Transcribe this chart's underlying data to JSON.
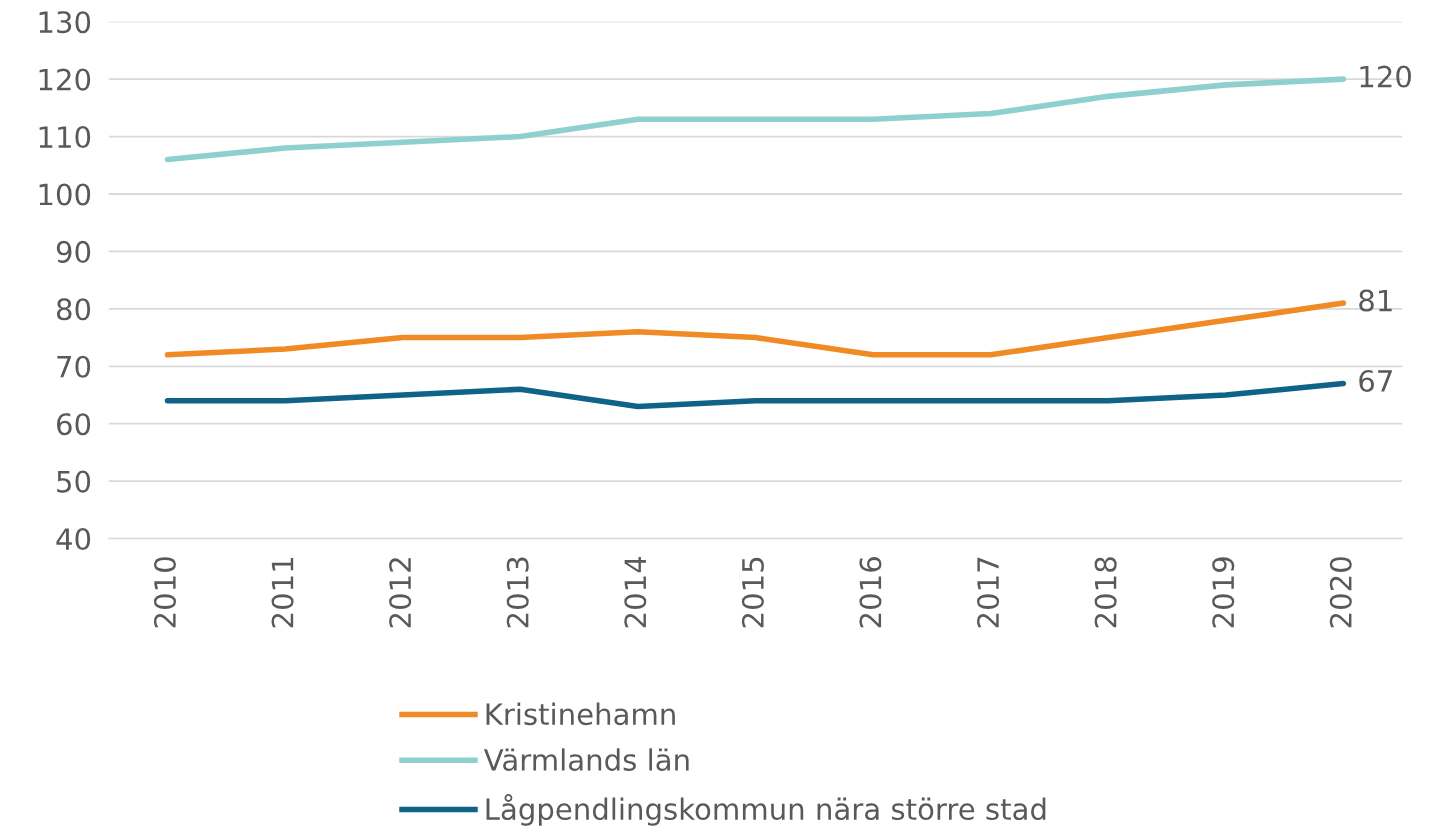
{
  "chart_data": {
    "type": "line",
    "categories": [
      "2010",
      "2011",
      "2012",
      "2013",
      "2014",
      "2015",
      "2016",
      "2017",
      "2018",
      "2019",
      "2020"
    ],
    "series": [
      {
        "name": "Kristinehamn",
        "color": "#f08a24",
        "values": [
          72,
          73,
          75,
          75,
          76,
          75,
          72,
          72,
          75,
          78,
          81
        ],
        "value_labels": [
          null,
          null,
          null,
          null,
          null,
          null,
          null,
          null,
          null,
          null,
          "81"
        ]
      },
      {
        "name": "Värmlands län",
        "color": "#8ecfd0",
        "values": [
          106,
          108,
          109,
          110,
          113,
          113,
          113,
          114,
          117,
          119,
          120
        ],
        "value_labels": [
          null,
          null,
          null,
          null,
          null,
          null,
          null,
          null,
          null,
          null,
          "120"
        ]
      },
      {
        "name": "Lågpendlingskommun nära större stad",
        "color": "#0e6387",
        "values": [
          64,
          64,
          65,
          66,
          63,
          64,
          64,
          64,
          64,
          65,
          67
        ],
        "value_labels": [
          null,
          null,
          null,
          null,
          null,
          null,
          null,
          null,
          null,
          null,
          "67"
        ]
      }
    ],
    "ylim": [
      40,
      130
    ],
    "yticks": [
      40,
      50,
      60,
      70,
      80,
      90,
      100,
      110,
      120,
      130
    ],
    "grid": "y",
    "legend": "bottom",
    "marker": "none",
    "line_style": "solid"
  }
}
